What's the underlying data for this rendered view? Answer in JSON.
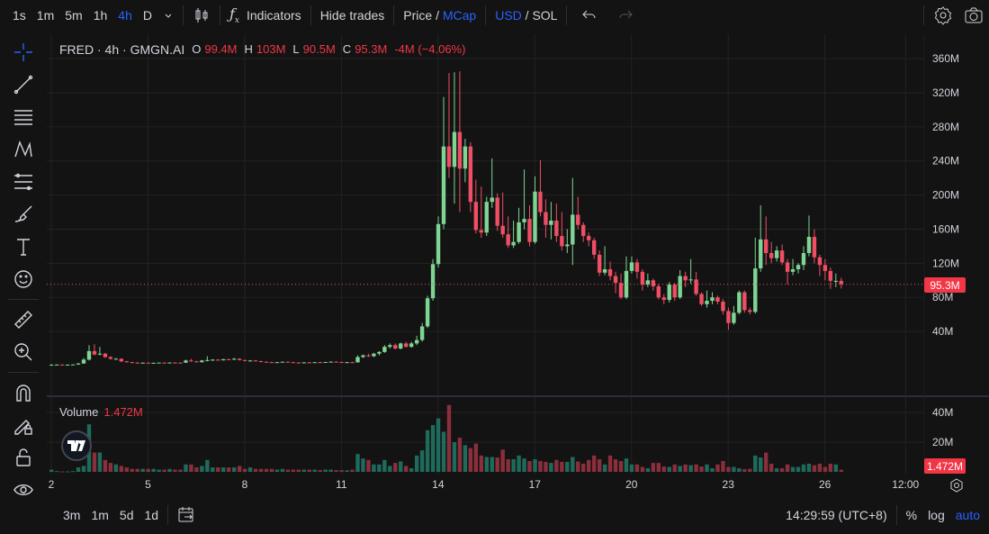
{
  "toolbar": {
    "intervals": [
      {
        "label": "1s"
      },
      {
        "label": "1m"
      },
      {
        "label": "5m"
      },
      {
        "label": "1h"
      },
      {
        "label": "4h",
        "active": true
      },
      {
        "label": "D"
      }
    ],
    "indicators": "Indicators",
    "hide_trades": "Hide trades",
    "price": "Price",
    "slash": " / ",
    "mcap": "MCap",
    "usd": "USD",
    "sol": "SOL"
  },
  "legend": {
    "title": "FRED · 4h · GMGN.AI",
    "o_key": "O",
    "o": "99.4M",
    "h_key": "H",
    "h": "103M",
    "l_key": "L",
    "l": "90.5M",
    "c_key": "C",
    "c": "95.3M",
    "change": "-4M (−4.06%)"
  },
  "volume_legend": {
    "label": "Volume",
    "value": "1.472M"
  },
  "current_price_label": "95.3M",
  "current_volume_label": "1.472M",
  "bottombar": {
    "ranges": [
      "3m",
      "1m",
      "5d",
      "1d"
    ],
    "time": "14:29:59 (UTC+8)",
    "percent": "%",
    "log": "log",
    "auto": "auto"
  },
  "colors": {
    "up": "#7ed492",
    "down": "#ef4e64",
    "vol_up": "#1e6b5c",
    "vol_down": "#8a2f3b",
    "accent": "#2962ff",
    "background": "#131313"
  },
  "chart_data": {
    "type": "candlestick",
    "interval": "4h",
    "price_unit": "M",
    "price_ticks": [
      40,
      80,
      120,
      160,
      200,
      240,
      280,
      320,
      360
    ],
    "price_tick_labels": [
      "40M",
      "80M",
      "120M",
      "160M",
      "200M",
      "240M",
      "280M",
      "320M",
      "360M"
    ],
    "volume_ticks": [
      20,
      40
    ],
    "volume_tick_labels": [
      "20M",
      "40M"
    ],
    "x_ticks": [
      {
        "label": "2",
        "day": 2
      },
      {
        "label": "5",
        "day": 5
      },
      {
        "label": "8",
        "day": 8
      },
      {
        "label": "11",
        "day": 11
      },
      {
        "label": "14",
        "day": 14
      },
      {
        "label": "17",
        "day": 17
      },
      {
        "label": "20",
        "day": 20
      },
      {
        "label": "23",
        "day": 23
      },
      {
        "label": "26",
        "day": 26
      },
      {
        "label": "12:00",
        "day": 28.5
      }
    ],
    "current_price": 95.3,
    "candles_ohlcv": [
      [
        1,
        1.5,
        0.5,
        1,
        1.5
      ],
      [
        1,
        1.5,
        0.8,
        1.2,
        0.5
      ],
      [
        1.2,
        1.5,
        0.8,
        1,
        0.3
      ],
      [
        1,
        1.4,
        0.8,
        1.1,
        0.3
      ],
      [
        1.1,
        1.6,
        0.9,
        1.3,
        0.5
      ],
      [
        1.3,
        3,
        1,
        2.5,
        3
      ],
      [
        2.5,
        9,
        2,
        7,
        4
      ],
      [
        7,
        24,
        6,
        17,
        32
      ],
      [
        17,
        25,
        12,
        13,
        13
      ],
      [
        13,
        22,
        12,
        14,
        13
      ],
      [
        14,
        15,
        9,
        10,
        8
      ],
      [
        10,
        11,
        7,
        8,
        6
      ],
      [
        8,
        9,
        7,
        8,
        5
      ],
      [
        8,
        8.5,
        4,
        5,
        4
      ],
      [
        5,
        5.5,
        3.5,
        4,
        3
      ],
      [
        4,
        4.5,
        3,
        3.5,
        2
      ],
      [
        3.5,
        4,
        3,
        3.2,
        2
      ],
      [
        3.2,
        3.8,
        2.8,
        3.4,
        2
      ],
      [
        3.4,
        3.8,
        3,
        3.2,
        2
      ],
      [
        3.2,
        3.6,
        2.8,
        3.3,
        2
      ],
      [
        3.3,
        3.7,
        3,
        3.5,
        1.5
      ],
      [
        3.5,
        3.9,
        3.1,
        3.4,
        1.5
      ],
      [
        3.4,
        3.8,
        3,
        3.6,
        2
      ],
      [
        3.6,
        4,
        3.2,
        3.5,
        1.5
      ],
      [
        3.5,
        4,
        3,
        3.4,
        1.5
      ],
      [
        3.4,
        7,
        3.2,
        6,
        5
      ],
      [
        6,
        8,
        4.5,
        5,
        5
      ],
      [
        5,
        5.5,
        3.5,
        4,
        3
      ],
      [
        4,
        6.5,
        3.8,
        6,
        4
      ],
      [
        6,
        11,
        5,
        6.5,
        8
      ],
      [
        6.5,
        7.5,
        5.5,
        7,
        3
      ],
      [
        7,
        7.5,
        6,
        6.2,
        3
      ],
      [
        6.2,
        7.8,
        6,
        7.5,
        3
      ],
      [
        7.5,
        8,
        6.5,
        7,
        3
      ],
      [
        7,
        9,
        6.5,
        8,
        3
      ],
      [
        8,
        8.5,
        6,
        6.5,
        4
      ],
      [
        6.5,
        7,
        5,
        5.5,
        2
      ],
      [
        5.5,
        6.5,
        5,
        6,
        3
      ],
      [
        6,
        6.5,
        5,
        5.2,
        2
      ],
      [
        5.2,
        5.8,
        4,
        4.5,
        2
      ],
      [
        4.5,
        5,
        3.5,
        4,
        2
      ],
      [
        4,
        4.5,
        3.5,
        3.8,
        2
      ],
      [
        3.8,
        4.2,
        3.2,
        4,
        1.5
      ],
      [
        4,
        4.8,
        3.6,
        4.5,
        2
      ],
      [
        4.5,
        5,
        3.8,
        4,
        1.5
      ],
      [
        4,
        4.4,
        3.4,
        3.6,
        1.5
      ],
      [
        3.6,
        4,
        3,
        3.4,
        1.5
      ],
      [
        3.4,
        4,
        3,
        3.8,
        1.5
      ],
      [
        3.8,
        4.3,
        3.2,
        3.5,
        1.5
      ],
      [
        3.5,
        4.2,
        3.2,
        4,
        1.5
      ],
      [
        4,
        4.5,
        3.5,
        3.8,
        1.2
      ],
      [
        3.8,
        4.4,
        3.4,
        4.2,
        1.5
      ],
      [
        4.2,
        5,
        3.8,
        4.6,
        1.5
      ],
      [
        4.6,
        5,
        4,
        4.2,
        1.2
      ],
      [
        4.2,
        4.6,
        3.6,
        3.9,
        1.2
      ],
      [
        3.9,
        4.3,
        3.5,
        4,
        1
      ],
      [
        4,
        4.5,
        3.5,
        3.8,
        1.5
      ],
      [
        3.8,
        12,
        3.5,
        10,
        12
      ],
      [
        10,
        13,
        9,
        12,
        9
      ],
      [
        12,
        14,
        10,
        11,
        8
      ],
      [
        11,
        15,
        10,
        14,
        5
      ],
      [
        14,
        17,
        12,
        16,
        5
      ],
      [
        16,
        24,
        15,
        22,
        8
      ],
      [
        22,
        26,
        20,
        24,
        4
      ],
      [
        24,
        26,
        19,
        20,
        6
      ],
      [
        20,
        27,
        19,
        26,
        7
      ],
      [
        26,
        28,
        21,
        22,
        4
      ],
      [
        22,
        28,
        21,
        26,
        2.4
      ],
      [
        26,
        35,
        24,
        30,
        11
      ],
      [
        30,
        50,
        28,
        46,
        14.5
      ],
      [
        46,
        82,
        44,
        79,
        28
      ],
      [
        79,
        125,
        76,
        119,
        31.5
      ],
      [
        119,
        175,
        115,
        166,
        36
      ],
      [
        166,
        315,
        160,
        257,
        27
      ],
      [
        257,
        343,
        220,
        233,
        45
      ],
      [
        233,
        344,
        190,
        274,
        20
      ],
      [
        274,
        345,
        180,
        231,
        23
      ],
      [
        231,
        266,
        215,
        257,
        18
      ],
      [
        257,
        262,
        180,
        192,
        16
      ],
      [
        192,
        218,
        155,
        159,
        19
      ],
      [
        159,
        210,
        150,
        156,
        11
      ],
      [
        156,
        198,
        152,
        192,
        10
      ],
      [
        192,
        243,
        185,
        197,
        10
      ],
      [
        197,
        202,
        158,
        164,
        9.7
      ],
      [
        164,
        203,
        150,
        154,
        15
      ],
      [
        154,
        175,
        138,
        141,
        8.5
      ],
      [
        141,
        170,
        138,
        145,
        8.5
      ],
      [
        145,
        185,
        143,
        168,
        11
      ],
      [
        168,
        230,
        160,
        172,
        9
      ],
      [
        172,
        188,
        140,
        145,
        7.3
      ],
      [
        145,
        222,
        143,
        204,
        8.5
      ],
      [
        204,
        241,
        175,
        180,
        7.3
      ],
      [
        180,
        195,
        150,
        165,
        6.7
      ],
      [
        165,
        192,
        148,
        170,
        6
      ],
      [
        170,
        190,
        145,
        152,
        8
      ],
      [
        152,
        180,
        135,
        140,
        6.7
      ],
      [
        140,
        160,
        132,
        142,
        6.7
      ],
      [
        142,
        220,
        118,
        177,
        10
      ],
      [
        177,
        198,
        160,
        165,
        7
      ],
      [
        165,
        168,
        145,
        152,
        5.5
      ],
      [
        152,
        156,
        140,
        147,
        8
      ],
      [
        147,
        150,
        125,
        130,
        11
      ],
      [
        130,
        135,
        105,
        109,
        8.5
      ],
      [
        109,
        140,
        106,
        113,
        5
      ],
      [
        113,
        122,
        100,
        105,
        11
      ],
      [
        105,
        110,
        85,
        97,
        8.5
      ],
      [
        97,
        108,
        78,
        80,
        7.3
      ],
      [
        80,
        128,
        78,
        111,
        9
      ],
      [
        111,
        128,
        108,
        121,
        5
      ],
      [
        121,
        125,
        102,
        110,
        5
      ],
      [
        110,
        113,
        88,
        95,
        3.3
      ],
      [
        95,
        108,
        92,
        100,
        2.4
      ],
      [
        100,
        102,
        88,
        93,
        6
      ],
      [
        93,
        96,
        78,
        80,
        6
      ],
      [
        80,
        84,
        72,
        77,
        3.6
      ],
      [
        77,
        98,
        74,
        95,
        3.3
      ],
      [
        95,
        97,
        76,
        80,
        5
      ],
      [
        80,
        112,
        78,
        105,
        4
      ],
      [
        105,
        110,
        92,
        100,
        5
      ],
      [
        100,
        125,
        96,
        101,
        4.5
      ],
      [
        101,
        110,
        82,
        84,
        5
      ],
      [
        84,
        86,
        70,
        72,
        3.6
      ],
      [
        72,
        88,
        68,
        76,
        5
      ],
      [
        76,
        86,
        72,
        80,
        2.4
      ],
      [
        80,
        82,
        72,
        75,
        5
      ],
      [
        75,
        78,
        60,
        64,
        7.3
      ],
      [
        64,
        68,
        42,
        50,
        3.3
      ],
      [
        50,
        70,
        48,
        62,
        3.3
      ],
      [
        62,
        88,
        60,
        86,
        2.4
      ],
      [
        86,
        88,
        62,
        65,
        1.8
      ],
      [
        65,
        68,
        60,
        63,
        2
      ],
      [
        63,
        150,
        61,
        114,
        11
      ],
      [
        114,
        188,
        110,
        148,
        9.7
      ],
      [
        148,
        175,
        118,
        132,
        13
      ],
      [
        132,
        145,
        120,
        126,
        5.5
      ],
      [
        126,
        140,
        122,
        135,
        2.4
      ],
      [
        135,
        142,
        118,
        121,
        2.4
      ],
      [
        121,
        125,
        95,
        110,
        5
      ],
      [
        110,
        125,
        106,
        113,
        3.3
      ],
      [
        113,
        120,
        108,
        118,
        3.3
      ],
      [
        118,
        140,
        112,
        132,
        5
      ],
      [
        132,
        176,
        128,
        151,
        5.5
      ],
      [
        151,
        160,
        120,
        127,
        4.5
      ],
      [
        127,
        130,
        105,
        118,
        5.5
      ],
      [
        118,
        125,
        100,
        111,
        3.3
      ],
      [
        111,
        115,
        90,
        99.4,
        5.5
      ],
      [
        99.4,
        108,
        92,
        99.4,
        5
      ],
      [
        99.4,
        103,
        90.5,
        95.3,
        1.472
      ]
    ]
  }
}
